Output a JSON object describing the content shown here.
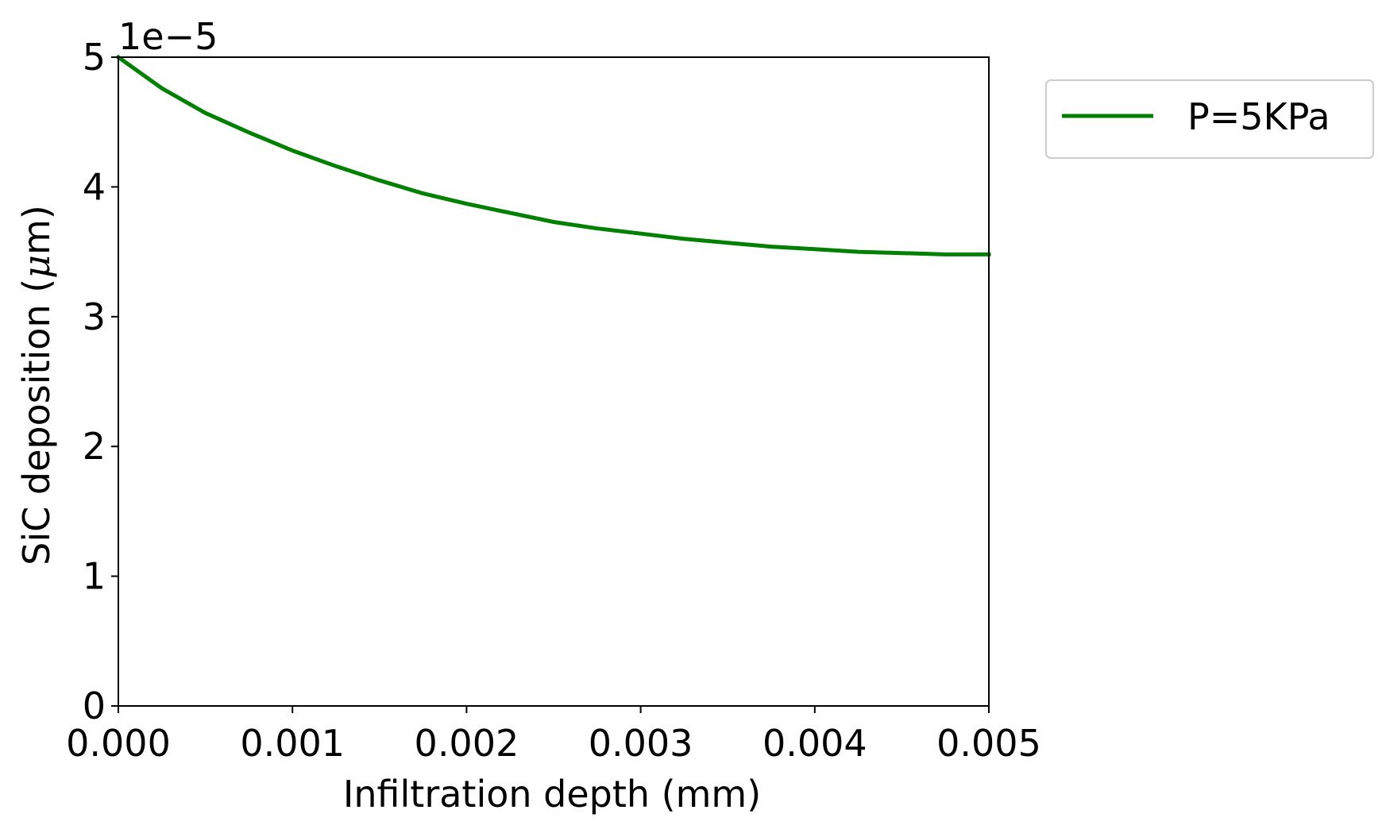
{
  "chart_data": {
    "type": "line",
    "title": "",
    "xlabel": "Infiltration depth (mm)",
    "ylabel_prefix": "SiC deposition (",
    "ylabel_mu": "μ",
    "ylabel_suffix": "m)",
    "offset_text": "1e−5",
    "xlim": [
      0,
      0.005
    ],
    "ylim": [
      0,
      5
    ],
    "x_ticks": [
      0,
      0.001,
      0.002,
      0.003,
      0.004,
      0.005
    ],
    "x_tick_labels": [
      "0.000",
      "0.001",
      "0.002",
      "0.003",
      "0.004",
      "0.005"
    ],
    "y_ticks": [
      0,
      1,
      2,
      3,
      4,
      5
    ],
    "y_tick_labels": [
      "0",
      "1",
      "2",
      "3",
      "4",
      "5"
    ],
    "grid": false,
    "legend_position": "outside-top-right",
    "series": [
      {
        "name": "P=5KPa",
        "color": "#008000",
        "x": [
          0,
          0.00025,
          0.0005,
          0.00075,
          0.001,
          0.00125,
          0.0015,
          0.00175,
          0.002,
          0.00225,
          0.0025,
          0.00275,
          0.003,
          0.00325,
          0.0035,
          0.00375,
          0.004,
          0.00425,
          0.0045,
          0.00475,
          0.005
        ],
        "y": [
          5.0,
          4.76,
          4.57,
          4.42,
          4.28,
          4.16,
          4.05,
          3.95,
          3.87,
          3.8,
          3.73,
          3.68,
          3.64,
          3.6,
          3.57,
          3.54,
          3.52,
          3.5,
          3.49,
          3.48,
          3.48
        ]
      }
    ]
  }
}
